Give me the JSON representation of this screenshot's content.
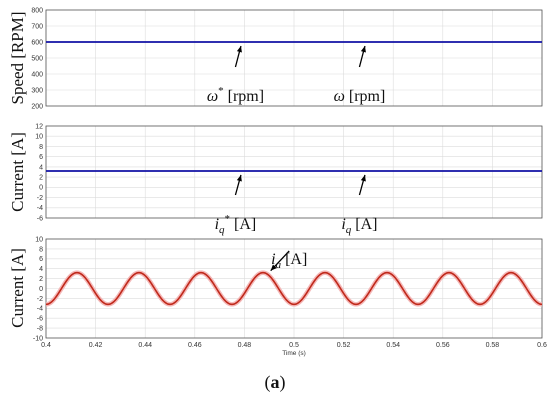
{
  "caption": {
    "open": "(",
    "letter": "a",
    "close": ")"
  },
  "colors": {
    "command": "#1a1aa8",
    "current": "#c0291b",
    "current_band": "#f4b8b8",
    "arrow": "#000000"
  },
  "chart_data": [
    {
      "type": "line",
      "ylabel": "Speed [RPM]",
      "ylim": [
        200,
        800
      ],
      "yticks": [
        200,
        300,
        400,
        500,
        600,
        700,
        800
      ],
      "xlim": [
        0.4,
        0.6
      ],
      "grid": true,
      "series": [
        {
          "name": "ω* [rpm]",
          "x": [
            0.4,
            0.6
          ],
          "values": [
            600,
            600
          ]
        },
        {
          "name": "ω [rpm]",
          "x": [
            0.4,
            0.6
          ],
          "values": [
            600,
            600
          ]
        }
      ],
      "annotations": [
        {
          "label": "ω",
          "sup": "*",
          "unit": " [rpm]",
          "x": 0.478,
          "y": 600
        },
        {
          "label": "ω",
          "sup": "",
          "unit": " [rpm]",
          "x": 0.528,
          "y": 600
        }
      ]
    },
    {
      "type": "line",
      "ylabel": "Current [A]",
      "ylim": [
        -6,
        12
      ],
      "yticks": [
        -6,
        -4,
        -2,
        0,
        2,
        4,
        6,
        8,
        10,
        12
      ],
      "xlim": [
        0.4,
        0.6
      ],
      "grid": true,
      "series": [
        {
          "name": "iq* [A]",
          "x": [
            0.4,
            0.6
          ],
          "values": [
            3.2,
            3.2
          ]
        },
        {
          "name": "iq [A]",
          "x": [
            0.4,
            0.6
          ],
          "values": [
            3.2,
            3.2
          ]
        }
      ],
      "annotations": [
        {
          "label": "i",
          "sub": "q",
          "sup": "*",
          "unit": " [A]",
          "x": 0.478,
          "y": 3.2
        },
        {
          "label": "i",
          "sub": "q",
          "sup": "",
          "unit": " [A]",
          "x": 0.528,
          "y": 3.2
        }
      ]
    },
    {
      "type": "line",
      "ylabel": "Current [A]",
      "ylim": [
        -10,
        10
      ],
      "yticks": [
        -10,
        -8,
        -6,
        -4,
        -2,
        0,
        2,
        4,
        6,
        8,
        10
      ],
      "xlim": [
        0.4,
        0.6
      ],
      "xticks": [
        0.4,
        0.42,
        0.44,
        0.46,
        0.48,
        0.5,
        0.52,
        0.54,
        0.56,
        0.58,
        0.6
      ],
      "xlabel": "Time (s)",
      "grid": true,
      "series": [
        {
          "name": "ia [A]",
          "waveform": "sine",
          "amplitude": 3.2,
          "frequency_hz": 40,
          "peak_at": 0.4125
        }
      ],
      "annotations": [
        {
          "label": "i",
          "sub": "a",
          "sup": "",
          "unit": " [A]",
          "x": 0.49,
          "y": 3.2
        }
      ]
    }
  ]
}
